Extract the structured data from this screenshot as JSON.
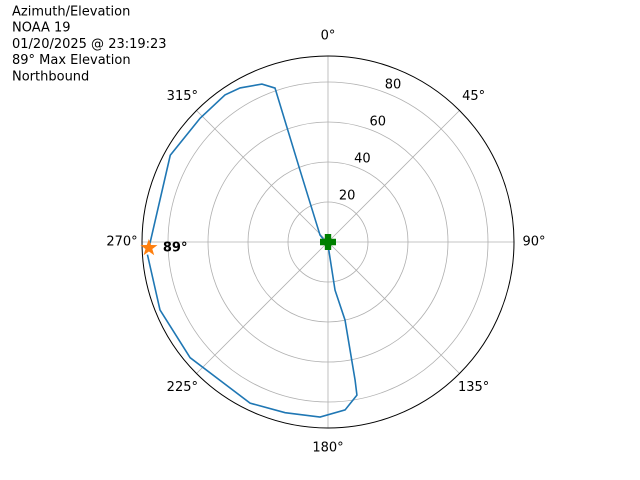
{
  "chart_data": {
    "type": "polar",
    "title": [
      "Azimuth/Elevation",
      "NOAA 19",
      "01/20/2025 @ 23:19:23",
      "89° Max Elevation",
      "Northbound"
    ],
    "theta_zero": "N",
    "theta_direction": "clockwise",
    "rlim": [
      0,
      93
    ],
    "rticks": [
      20,
      40,
      60,
      80
    ],
    "thetaticks": [
      {
        "value": 0,
        "label": "0°"
      },
      {
        "value": 45,
        "label": "45°"
      },
      {
        "value": 90,
        "label": "90°"
      },
      {
        "value": 135,
        "label": "135°"
      },
      {
        "value": 180,
        "label": "180°"
      },
      {
        "value": 225,
        "label": "225°"
      },
      {
        "value": 270,
        "label": "270°"
      },
      {
        "value": 315,
        "label": "315°"
      }
    ],
    "grid": true,
    "series": [
      {
        "color": "#1f77b4",
        "theta": [
          268.1,
          298.8,
          314.1,
          325,
          330.3,
          337.3,
          341,
          338.7,
          311,
          180,
          171.7,
          167.7,
          168.9,
          169.3,
          174.2,
          182.6,
          194.1,
          205.8,
          230,
          248,
          266
        ],
        "r": [
          89.6,
          90,
          89,
          89.8,
          88.7,
          85.6,
          81.4,
          38.6,
          5.3,
          1.5,
          24.3,
          39.9,
          70.3,
          77.9,
          84.4,
          87.6,
          88,
          89.5,
          90,
          90.6,
          90.5
        ]
      }
    ],
    "markers": [
      {
        "marker": "star",
        "color": "#ff7f0e",
        "theta": 268.1,
        "r": 89.6,
        "annotation": "89°"
      },
      {
        "marker": "plus",
        "color": "#008000",
        "theta": 0,
        "r": 0
      }
    ]
  }
}
